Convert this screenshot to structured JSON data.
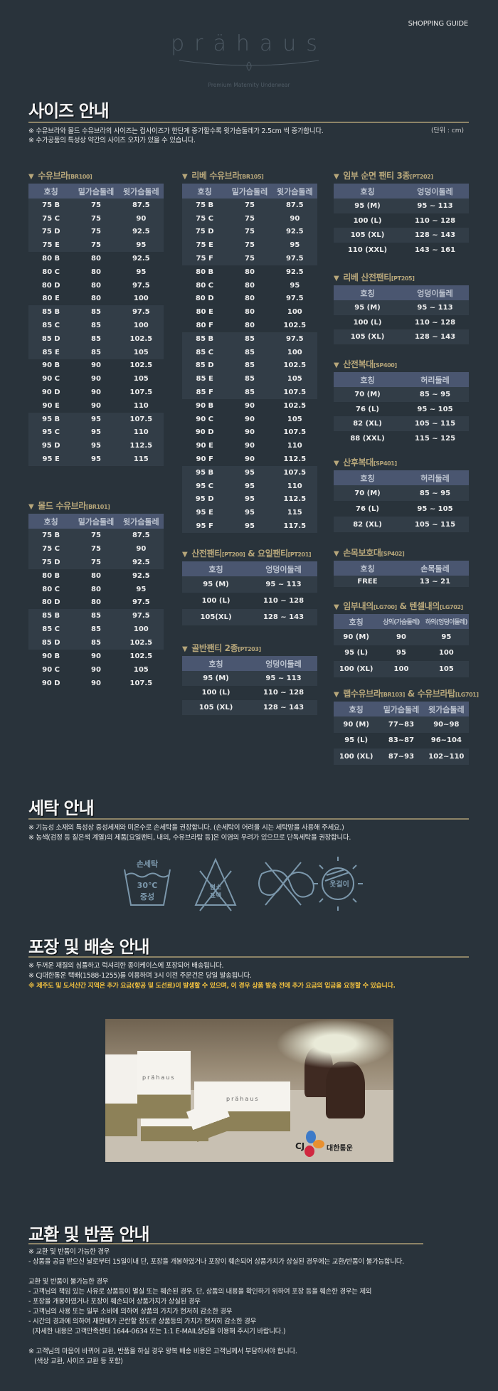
{
  "header": {
    "shopping_guide": "SHOPPING GUIDE",
    "logo_text": "prähaus",
    "logo_tagline": "Premium Maternity Underwear"
  },
  "size_guide": {
    "title": "사이즈 안내",
    "unit": "(단위 : cm)",
    "notes": [
      "※ 수유브라와 몰드 수유브라의 사이즈는 컵사이즈가 한단계 증가할수록 윗가슴둘레가 2.5cm 씩 증가합니다.",
      "※ 수가공품의 특성상 약간의 사이즈 오차가 있을 수 있습니다."
    ],
    "tables": {
      "br100": {
        "name": "수유브라",
        "code": "[BR100]",
        "columns": [
          "호칭",
          "밑가슴둘레",
          "윗가슴둘레"
        ],
        "group": 4,
        "rows": [
          [
            "75 B",
            "75",
            "87.5"
          ],
          [
            "75 C",
            "75",
            "90"
          ],
          [
            "75 D",
            "75",
            "92.5"
          ],
          [
            "75 E",
            "75",
            "95"
          ],
          [
            "80 B",
            "80",
            "92.5"
          ],
          [
            "80 C",
            "80",
            "95"
          ],
          [
            "80 D",
            "80",
            "97.5"
          ],
          [
            "80 E",
            "80",
            "100"
          ],
          [
            "85 B",
            "85",
            "97.5"
          ],
          [
            "85 C",
            "85",
            "100"
          ],
          [
            "85 D",
            "85",
            "102.5"
          ],
          [
            "85 E",
            "85",
            "105"
          ],
          [
            "90 B",
            "90",
            "102.5"
          ],
          [
            "90 C",
            "90",
            "105"
          ],
          [
            "90 D",
            "90",
            "107.5"
          ],
          [
            "90 E",
            "90",
            "110"
          ],
          [
            "95 B",
            "95",
            "107.5"
          ],
          [
            "95 C",
            "95",
            "110"
          ],
          [
            "95 D",
            "95",
            "112.5"
          ],
          [
            "95 E",
            "95",
            "115"
          ]
        ]
      },
      "br101": {
        "name": "몰드 수유브라",
        "code": "[BR101]",
        "columns": [
          "호칭",
          "밑가슴둘레",
          "윗가슴둘레"
        ],
        "group": 3,
        "rows": [
          [
            "75 B",
            "75",
            "87.5"
          ],
          [
            "75 C",
            "75",
            "90"
          ],
          [
            "75 D",
            "75",
            "92.5"
          ],
          [
            "80 B",
            "80",
            "92.5"
          ],
          [
            "80 C",
            "80",
            "95"
          ],
          [
            "80 D",
            "80",
            "97.5"
          ],
          [
            "85 B",
            "85",
            "97.5"
          ],
          [
            "85 C",
            "85",
            "100"
          ],
          [
            "85 D",
            "85",
            "102.5"
          ],
          [
            "90 B",
            "90",
            "102.5"
          ],
          [
            "90 C",
            "90",
            "105"
          ],
          [
            "90 D",
            "90",
            "107.5"
          ]
        ]
      },
      "br105": {
        "name": "리베 수유브라",
        "code": "[BR105]",
        "columns": [
          "호칭",
          "밑가슴둘레",
          "윗가슴둘레"
        ],
        "group": 5,
        "rows": [
          [
            "75 B",
            "75",
            "87.5"
          ],
          [
            "75 C",
            "75",
            "90"
          ],
          [
            "75 D",
            "75",
            "92.5"
          ],
          [
            "75 E",
            "75",
            "95"
          ],
          [
            "75 F",
            "75",
            "97.5"
          ],
          [
            "80 B",
            "80",
            "92.5"
          ],
          [
            "80 C",
            "80",
            "95"
          ],
          [
            "80 D",
            "80",
            "97.5"
          ],
          [
            "80 E",
            "80",
            "100"
          ],
          [
            "80 F",
            "80",
            "102.5"
          ],
          [
            "85 B",
            "85",
            "97.5"
          ],
          [
            "85 C",
            "85",
            "100"
          ],
          [
            "85 D",
            "85",
            "102.5"
          ],
          [
            "85 E",
            "85",
            "105"
          ],
          [
            "85 F",
            "85",
            "107.5"
          ],
          [
            "90 B",
            "90",
            "102.5"
          ],
          [
            "90 C",
            "90",
            "105"
          ],
          [
            "90 D",
            "90",
            "107.5"
          ],
          [
            "90 E",
            "90",
            "110"
          ],
          [
            "90 F",
            "90",
            "112.5"
          ],
          [
            "95 B",
            "95",
            "107.5"
          ],
          [
            "95 C",
            "95",
            "110"
          ],
          [
            "95 D",
            "95",
            "112.5"
          ],
          [
            "95 E",
            "95",
            "115"
          ],
          [
            "95 F",
            "95",
            "117.5"
          ]
        ]
      },
      "pt200": {
        "name": "산전팬티",
        "code": "[PT200]",
        "name2": " & 요일팬티",
        "code2": "[PT201]",
        "columns": [
          "호칭",
          "엉덩이둘레"
        ],
        "group": 1,
        "rows": [
          [
            "95 (M)",
            "95 ~ 113"
          ],
          [
            "100 (L)",
            "110 ~ 128"
          ],
          [
            "105(XL)",
            "128 ~ 143"
          ]
        ]
      },
      "pt203": {
        "name": "골반팬티 2종",
        "code": "[PT203]",
        "columns": [
          "호칭",
          "엉덩이둘레"
        ],
        "group": 1,
        "rows": [
          [
            "95 (M)",
            "95 ~ 113"
          ],
          [
            "100 (L)",
            "110 ~ 128"
          ],
          [
            "105 (XL)",
            "128 ~ 143"
          ]
        ]
      },
      "pt202": {
        "name": "임부 순면 팬티 3종",
        "code": "[PT202]",
        "columns": [
          "호칭",
          "엉덩이둘레"
        ],
        "group": 1,
        "rows": [
          [
            "95 (M)",
            "95 ~ 113"
          ],
          [
            "100 (L)",
            "110 ~ 128"
          ],
          [
            "105 (XL)",
            "128 ~ 143"
          ],
          [
            "110 (XXL)",
            "143 ~ 161"
          ]
        ]
      },
      "pt205": {
        "name": "리베 산전팬티",
        "code": "[PT205]",
        "columns": [
          "호칭",
          "엉덩이둘레"
        ],
        "group": 1,
        "rows": [
          [
            "95 (M)",
            "95 ~ 113"
          ],
          [
            "100 (L)",
            "110 ~ 128"
          ],
          [
            "105 (XL)",
            "128 ~ 143"
          ]
        ]
      },
      "sp400": {
        "name": "산전복대",
        "code": "[SP400]",
        "columns": [
          "호칭",
          "허리둘레"
        ],
        "group": 1,
        "rows": [
          [
            "70 (M)",
            "85 ~ 95"
          ],
          [
            "76 (L)",
            "95 ~ 105"
          ],
          [
            "82 (XL)",
            "105 ~ 115"
          ],
          [
            "88 (XXL)",
            "115 ~ 125"
          ]
        ]
      },
      "sp401": {
        "name": "산후복대",
        "code": "[SP401]",
        "columns": [
          "호칭",
          "허리둘레"
        ],
        "group": 1,
        "rows": [
          [
            "70 (M)",
            "85 ~ 95"
          ],
          [
            "76 (L)",
            "95 ~ 105"
          ],
          [
            "82 (XL)",
            "105 ~ 115"
          ]
        ]
      },
      "sp402": {
        "name": "손목보호대",
        "code": "[SP402]",
        "columns": [
          "호칭",
          "손목둘레"
        ],
        "group": 1,
        "rows": [
          [
            "FREE",
            "13 ~ 21"
          ]
        ]
      },
      "lg700": {
        "name": "임부내의",
        "code": "[LG700]",
        "name2": " & 텐셀내의",
        "code2": "[LG702]",
        "columns": [
          "호칭",
          "상의(가슴둘레)",
          "하의(엉덩이둘레)"
        ],
        "group": 1,
        "rows": [
          [
            "90 (M)",
            "90",
            "95"
          ],
          [
            "95 (L)",
            "95",
            "100"
          ],
          [
            "100 (XL)",
            "100",
            "105"
          ]
        ]
      },
      "br103": {
        "name": "랩수유브라",
        "code": "[BR103]",
        "name2": " & 수유브라탑",
        "code2": "[LG701]",
        "columns": [
          "호칭",
          "밑가슴둘레",
          "윗가슴둘레"
        ],
        "group": 1,
        "rows": [
          [
            "90 (M)",
            "77~83",
            "90~98"
          ],
          [
            "95 (L)",
            "83~87",
            "96~104"
          ],
          [
            "100 (XL)",
            "87~93",
            "102~110"
          ]
        ]
      }
    }
  },
  "washing": {
    "title": "세탁 안내",
    "notes": [
      "※ 기능성 소재의 특성상 중성세제와 미온수로 손세탁을 권장합니다. (손세탁이 어려울 시는 세탁망을 사용해 주세요.)",
      "※ 농색(검정 등 짙은색 계열)의 제품[요일팬티, 내의, 수유브라탑 등]은 이염의 우려가 있으므로 단독세탁을 권장합니다."
    ],
    "icons": [
      {
        "icon": "hand-wash-icon",
        "label": "손세탁",
        "line2": "30℃",
        "line3": "중성"
      },
      {
        "icon": "no-bleach-icon",
        "label": "염소",
        "line2": "표백"
      },
      {
        "icon": "no-wring-icon"
      },
      {
        "icon": "no-sun-dry-icon",
        "label": "옷걸이"
      }
    ],
    "icon_color": "#7b97ab"
  },
  "shipping": {
    "title": "포장 및 배송 안내",
    "notes": [
      "※ 두꺼운 재질의 심플하고 럭셔리한 종이케이스에 포장되어 배송됩니다.",
      "※ CJ대한통운 택배(1588-1255)를 이용하며 3시 이전 주문건은 당일 발송됩니다."
    ],
    "warning": "※ 제주도 및 도서산간 지역은 추가 요금(항공 및 도선료)이 발생할 수 있으며, 이 경우 상품 발송 전에 추가 요금의 입금을 요청할 수 있습니다.",
    "photo": {
      "box_brand": "prähaus",
      "courier_logo": "CJ",
      "courier_name": "대한통운"
    }
  },
  "exchange": {
    "title": "교환 및 반품 안내",
    "lines": [
      "※ 교환 및 반품이 가능한 경우",
      "- 상품을 공급 받으신 날로부터 15일이내 단, 포장을 개봉하였거나 포장이 훼손되어 상품가치가 상실된 경우에는 교환/반품이 불가능합니다.",
      "",
      "교환 및 반품이 불가능한 경우",
      "- 고객님의 책임 있는 사유로 상품등이 멸실 또는 훼손된 경우. 단, 상품의 내용을 확인하기 위하여 포장 등을 훼손한 경우는 제외",
      "- 포장을 개봉하였거나 포장이 훼손되어 상품가치가 상실된 경우",
      "- 고객님의 사용 또는 일부 소비에 의하여 상품의 가치가 현저히 감소한 경우",
      "- 시간의 경과에 의하여 재판매가 곤란할 정도로 상품등의 가치가 현저히 감소한 경우",
      "  (자세한 내용은 고객만족센터 1644-0634 또는 1:1 E-MAIL상담을 이용해 주시기 바랍니다.)",
      "",
      "※ 고객님의 마음이 바뀌어 교환, 반품을 하실 경우 왕복 배송 비용은 고객님께서 부담하셔야 합니다.",
      "   (색상 교환, 사이즈 교환 등 포함)"
    ]
  },
  "colors": {
    "background": "#29333b",
    "table_header": "#4a5670",
    "row_shade": "#323d47",
    "accent_gold": "#b6a67a",
    "warning": "#f0c040"
  }
}
